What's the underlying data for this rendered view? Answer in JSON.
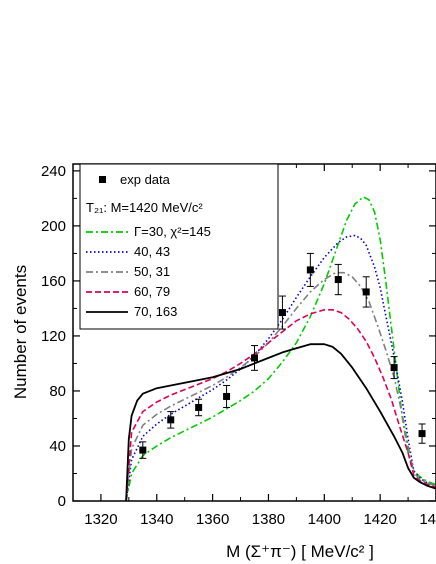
{
  "chart_data": {
    "type": "line",
    "xlabel": "M (Σ⁺π⁻) [ MeV/c² ]",
    "ylabel": "Number of events",
    "xlim": [
      1310,
      1440
    ],
    "ylim": [
      0,
      245
    ],
    "x_ticks": [
      "1320",
      "1340",
      "1360",
      "1380",
      "1400",
      "1420",
      "14"
    ],
    "y_ticks": [
      "0",
      "40",
      "80",
      "120",
      "160",
      "200",
      "240"
    ],
    "legend_position": "top-left",
    "legend_header": "T₂₁: M=1420 MeV/c²",
    "scatter": {
      "name": "exp data",
      "x": [
        1335,
        1345,
        1355,
        1365,
        1375,
        1385,
        1395,
        1405,
        1415,
        1425,
        1435
      ],
      "y": [
        37,
        59,
        68,
        76,
        104,
        137,
        168,
        161,
        152,
        97,
        49
      ],
      "err": [
        6,
        6,
        6,
        8,
        9,
        12,
        12,
        11,
        11,
        8,
        7
      ],
      "color": "#000000"
    },
    "series": [
      {
        "name": "Γ=30, χ²=145",
        "color": "#00cc00",
        "dash": "dashdot",
        "x": [
          1329,
          1331,
          1335,
          1340,
          1345,
          1350,
          1355,
          1360,
          1365,
          1370,
          1375,
          1380,
          1385,
          1390,
          1395,
          1400,
          1405,
          1408,
          1411,
          1414,
          1416,
          1418,
          1420,
          1422,
          1425,
          1428,
          1430,
          1432,
          1434,
          1437,
          1440
        ],
        "y": [
          0,
          20,
          33,
          40,
          46,
          51,
          56,
          61,
          67,
          73,
          80,
          89,
          101,
          115,
          134,
          158,
          187,
          204,
          216,
          221,
          219,
          210,
          190,
          160,
          110,
          60,
          35,
          22,
          18,
          14,
          12
        ]
      },
      {
        "name": "40, 43",
        "color": "#0000cc",
        "dash": "dot",
        "x": [
          1329,
          1331,
          1335,
          1340,
          1345,
          1350,
          1355,
          1360,
          1365,
          1370,
          1375,
          1380,
          1385,
          1390,
          1395,
          1400,
          1405,
          1408,
          1411,
          1413,
          1415,
          1418,
          1420,
          1422,
          1425,
          1428,
          1430,
          1432,
          1434,
          1437,
          1440
        ],
        "y": [
          0,
          30,
          47,
          56,
          63,
          69,
          75,
          81,
          88,
          96,
          106,
          118,
          132,
          148,
          163,
          177,
          188,
          192,
          193,
          191,
          186,
          170,
          155,
          135,
          105,
          72,
          45,
          22,
          17,
          13,
          11
        ]
      },
      {
        "name": "50, 31",
        "color": "#808080",
        "dash": "dashdot",
        "x": [
          1329,
          1331,
          1335,
          1340,
          1345,
          1350,
          1355,
          1360,
          1365,
          1370,
          1375,
          1380,
          1385,
          1390,
          1395,
          1400,
          1404,
          1407,
          1410,
          1413,
          1416,
          1419,
          1422,
          1425,
          1428,
          1430,
          1432,
          1434,
          1437,
          1440
        ],
        "y": [
          0,
          38,
          55,
          63,
          69,
          74,
          79,
          84,
          90,
          97,
          105,
          115,
          127,
          140,
          152,
          161,
          166,
          166,
          163,
          156,
          145,
          128,
          110,
          90,
          62,
          40,
          21,
          16,
          13,
          11
        ]
      },
      {
        "name": "60, 79",
        "color": "#e0005a",
        "dash": "dash",
        "x": [
          1329,
          1331,
          1335,
          1340,
          1345,
          1350,
          1355,
          1360,
          1365,
          1370,
          1375,
          1380,
          1385,
          1390,
          1395,
          1400,
          1403,
          1406,
          1409,
          1412,
          1415,
          1418,
          1421,
          1424,
          1427,
          1430,
          1432,
          1434,
          1437,
          1440
        ],
        "y": [
          0,
          50,
          65,
          72,
          77,
          81,
          85,
          89,
          94,
          100,
          107,
          115,
          123,
          131,
          136,
          139,
          139,
          137,
          132,
          125,
          116,
          104,
          90,
          74,
          54,
          35,
          19,
          15,
          12,
          10
        ]
      },
      {
        "name": "70, 163",
        "color": "#000000",
        "dash": "solid",
        "x": [
          1329,
          1330,
          1331,
          1333,
          1335,
          1340,
          1345,
          1350,
          1355,
          1360,
          1365,
          1370,
          1375,
          1380,
          1385,
          1390,
          1395,
          1398,
          1400,
          1403,
          1406,
          1410,
          1415,
          1420,
          1425,
          1428,
          1430,
          1432,
          1434,
          1437,
          1440
        ],
        "y": [
          0,
          45,
          62,
          73,
          78,
          82,
          84,
          86,
          88,
          90,
          93,
          96,
          100,
          104,
          108,
          111,
          114,
          114,
          114,
          112,
          107,
          97,
          82,
          65,
          47,
          35,
          24,
          17,
          14,
          11,
          9
        ]
      }
    ]
  }
}
